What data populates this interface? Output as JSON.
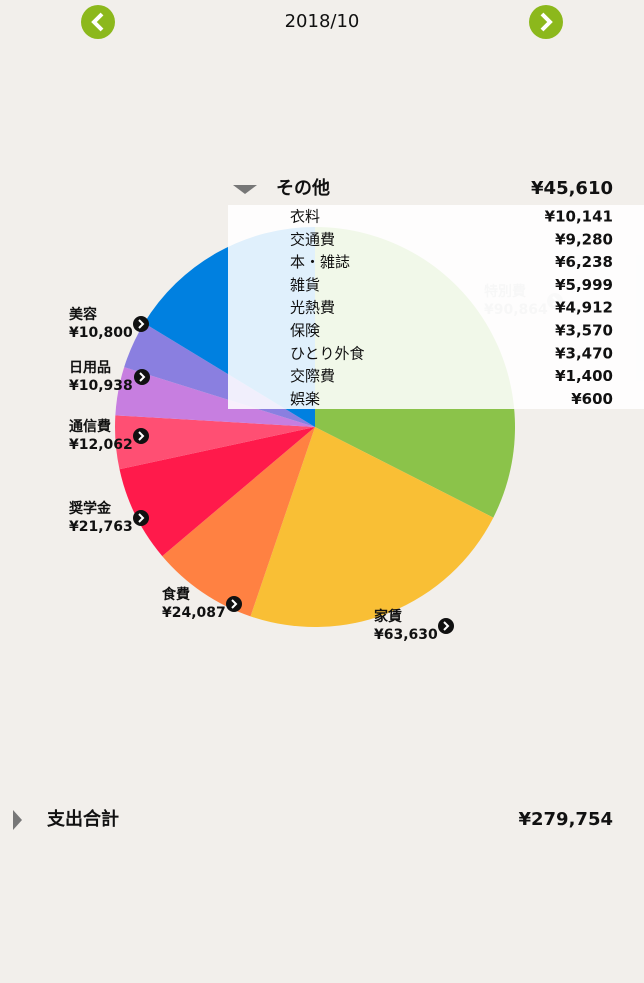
{
  "header": {
    "month": "2018/10"
  },
  "chart_data": {
    "type": "pie",
    "categories": [
      "特別費",
      "家賃",
      "食費",
      "奨学金",
      "通信費",
      "日用品",
      "美容",
      "その他"
    ],
    "values": [
      90864,
      63630,
      24087,
      21763,
      12062,
      10938,
      10800,
      45610
    ],
    "value_labels": [
      "¥90,864",
      "¥63,630",
      "¥24,087",
      "¥21,763",
      "¥12,062",
      "¥10,938",
      "¥10,800",
      "¥45,610"
    ],
    "colors": [
      "#8bc34a",
      "#f9bf35",
      "#ff8142",
      "#ff1a4b",
      "#ff4f73",
      "#c77ee0",
      "#8a7fe0",
      "#0080e0"
    ]
  },
  "breakdown": {
    "items": [
      {
        "name": "衣料",
        "amount": "¥10,141"
      },
      {
        "name": "交通費",
        "amount": "¥9,280"
      },
      {
        "name": "本・雑誌",
        "amount": "¥6,238"
      },
      {
        "name": "雑貨",
        "amount": "¥5,999"
      },
      {
        "name": "光熱費",
        "amount": "¥4,912"
      },
      {
        "name": "保険",
        "amount": "¥3,570"
      },
      {
        "name": "ひとり外食",
        "amount": "¥3,470"
      },
      {
        "name": "交際費",
        "amount": "¥1,400"
      },
      {
        "name": "娯楽",
        "amount": "¥600"
      }
    ]
  },
  "total": {
    "label": "支出合計",
    "amount": "¥279,754"
  }
}
